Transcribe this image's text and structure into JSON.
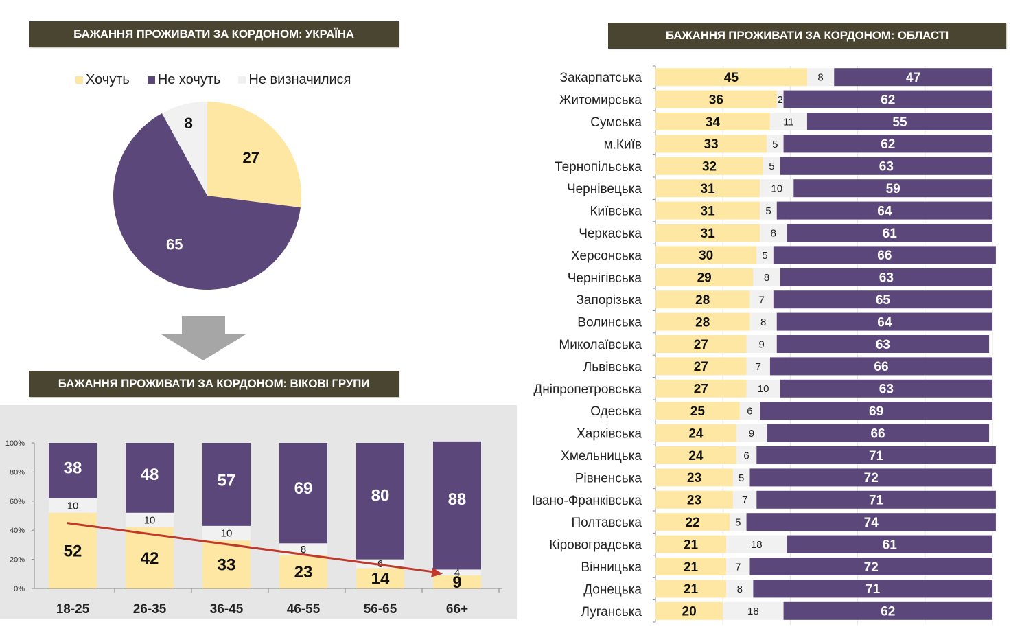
{
  "colors": {
    "want": "#fde7a3",
    "not_want": "#5c477a",
    "undecided": "#f1f1f1",
    "banner": "#4a4530",
    "trend_arrow": "#c0392b",
    "down_arrow": "#a6a6a6"
  },
  "banners": {
    "ukraine": "БАЖАННЯ ПРОЖИВАТИ ЗА КОРДОНОМ: УКРАЇНА",
    "age": "БАЖАННЯ ПРОЖИВАТИ ЗА КОРДОНОМ: ВІКОВІ ГРУПИ",
    "regions": "БАЖАННЯ ПРОЖИВАТИ ЗА КОРДОНОМ: ОБЛАСТІ"
  },
  "legend": [
    {
      "label": "Хочуть",
      "key": "want"
    },
    {
      "label": "Не хочуть",
      "key": "not_want"
    },
    {
      "label": "Не визначилися",
      "key": "undecided"
    }
  ],
  "icons": {
    "down_arrow": "down-arrow-icon"
  },
  "chart_data": [
    {
      "type": "pie",
      "title": "БАЖАННЯ ПРОЖИВАТИ ЗА КОРДОНОМ: УКРАЇНА",
      "legend_position": "top",
      "slices": [
        {
          "label": "Хочуть",
          "value": 27
        },
        {
          "label": "Не хочуть",
          "value": 65
        },
        {
          "label": "Не визначилися",
          "value": 8
        }
      ]
    },
    {
      "type": "bar",
      "stacked": true,
      "orientation": "vertical",
      "title": "БАЖАННЯ ПРОЖИВАТИ ЗА КОРДОНОМ: ВІКОВІ ГРУПИ",
      "categories": [
        "18-25",
        "26-35",
        "36-45",
        "46-55",
        "56-65",
        "66+"
      ],
      "series": [
        {
          "name": "Хочуть",
          "values": [
            52,
            42,
            33,
            23,
            14,
            9
          ]
        },
        {
          "name": "Не визначилися",
          "values": [
            10,
            10,
            10,
            8,
            6,
            4
          ]
        },
        {
          "name": "Не хочуть",
          "values": [
            38,
            48,
            57,
            69,
            80,
            88
          ]
        }
      ],
      "yticks": [
        "0%",
        "20%",
        "40%",
        "60%",
        "80%",
        "100%"
      ],
      "ylim": [
        0,
        100
      ],
      "annotation": "trend arrow declining from 18-25 to 66+",
      "grid": false
    },
    {
      "type": "bar",
      "stacked": true,
      "orientation": "horizontal",
      "title": "БАЖАННЯ ПРОЖИВАТИ ЗА КОРДОНОМ: ОБЛАСТІ",
      "categories": [
        "Закарпатська",
        "Житомирська",
        "Сумська",
        "м.Київ",
        "Тернопільська",
        "Чернівецька",
        "Київська",
        "Черкаська",
        "Херсонська",
        "Чернігівська",
        "Запорізька",
        "Волинська",
        "Миколаївська",
        "Львівська",
        "Дніпропетровська",
        "Одеська",
        "Харківська",
        "Хмельницька",
        "Рівненська",
        "Івано-Франківська",
        "Полтавська",
        "Кіровоградська",
        "Вінницька",
        "Донецька",
        "Луганська"
      ],
      "series": [
        {
          "name": "Хочуть",
          "values": [
            45,
            36,
            34,
            33,
            32,
            31,
            31,
            31,
            30,
            29,
            28,
            28,
            27,
            27,
            27,
            25,
            24,
            24,
            23,
            23,
            22,
            21,
            21,
            21,
            20
          ]
        },
        {
          "name": "Не визначилися",
          "values": [
            8,
            2,
            11,
            5,
            5,
            10,
            5,
            8,
            5,
            8,
            7,
            8,
            9,
            7,
            10,
            6,
            9,
            6,
            5,
            7,
            5,
            18,
            7,
            8,
            18
          ]
        },
        {
          "name": "Не хочуть",
          "values": [
            47,
            62,
            55,
            62,
            63,
            59,
            64,
            61,
            66,
            63,
            65,
            64,
            63,
            66,
            63,
            69,
            66,
            71,
            72,
            71,
            74,
            61,
            72,
            71,
            62
          ]
        }
      ],
      "xlim": [
        0,
        100
      ],
      "grid": true
    }
  ]
}
